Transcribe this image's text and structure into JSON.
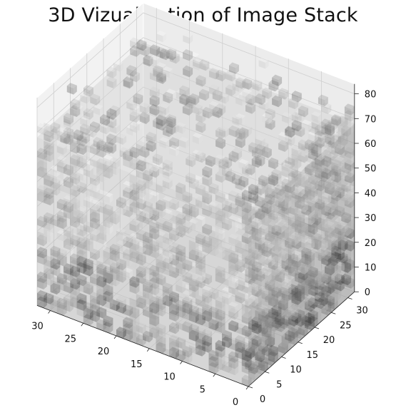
{
  "chart_data": {
    "type": "voxel3d",
    "title": "3D Vizualization of Image Stack",
    "xlabel": "",
    "ylabel": "",
    "zlabel": "",
    "x_ticks": [
      0,
      5,
      10,
      15,
      20,
      25,
      30
    ],
    "y_ticks": [
      0,
      5,
      10,
      15,
      20,
      25,
      30
    ],
    "z_ticks": [
      0,
      10,
      20,
      30,
      40,
      50,
      60,
      70,
      80
    ],
    "xlim": [
      0,
      32
    ],
    "ylim": [
      0,
      32
    ],
    "zlim": [
      0,
      84
    ],
    "grid": true,
    "colormap": "gray",
    "voxel_alpha": 0.35
  }
}
